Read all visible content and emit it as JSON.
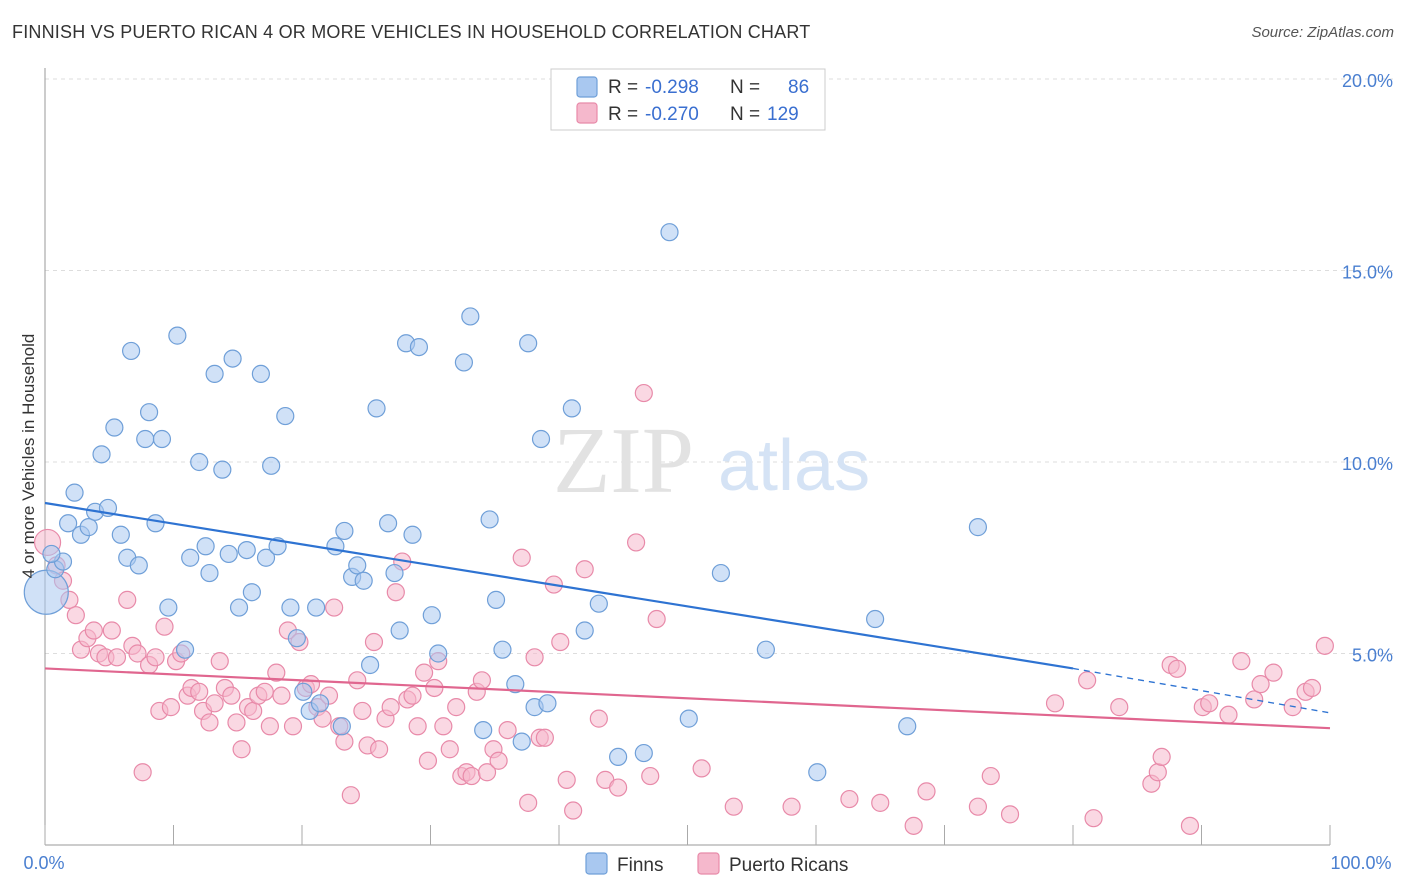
{
  "title": "FINNISH VS PUERTO RICAN 4 OR MORE VEHICLES IN HOUSEHOLD CORRELATION CHART",
  "source": "Source: ZipAtlas.com",
  "watermark": {
    "zip": "ZIP",
    "atlas": "atlas"
  },
  "colors": {
    "finns_fill": "#a9c8f0",
    "finns_stroke": "#6f9fd8",
    "finns_line": "#2e73d2",
    "pr_fill": "#f5b8cc",
    "pr_stroke": "#e88aa9",
    "pr_line": "#e0668f",
    "grid": "#dddddd",
    "tick_text": "#4a7fd0"
  },
  "legend": {
    "rows": [
      {
        "r_label": "R =",
        "r_value": "-0.298",
        "n_label": "N =",
        "n_value": "86"
      },
      {
        "r_label": "R =",
        "r_value": "-0.270",
        "n_label": "N =",
        "n_value": "129"
      }
    ]
  },
  "bottom_legend": [
    "Finns",
    "Puerto Ricans"
  ],
  "chart_data": {
    "type": "scatter",
    "title": "FINNISH VS PUERTO RICAN 4 OR MORE VEHICLES IN HOUSEHOLD CORRELATION CHART",
    "xlabel": "",
    "ylabel": "4 or more Vehicles in Household",
    "xlim": [
      0,
      100
    ],
    "ylim": [
      0,
      20
    ],
    "x_tick_labels": [
      "0.0%",
      "100.0%"
    ],
    "y_tick_labels": [
      "5.0%",
      "10.0%",
      "15.0%",
      "20.0%"
    ],
    "y_ticks": [
      5,
      10,
      15,
      20
    ],
    "grid": true,
    "legend_placement": "top-center",
    "series": [
      {
        "name": "Finns",
        "r": -0.298,
        "n": 86,
        "trend": {
          "x0": 0,
          "y0": 8.93,
          "x1": 80,
          "y1": 4.61,
          "dashed_to_x": 100,
          "dashed_to_y": 3.45
        },
        "points": [
          [
            0.1,
            6.6
          ],
          [
            0.8,
            7.2
          ],
          [
            1.4,
            7.4
          ],
          [
            1.8,
            8.4
          ],
          [
            2.3,
            9.2
          ],
          [
            2.8,
            8.1
          ],
          [
            3.4,
            8.3
          ],
          [
            3.9,
            8.7
          ],
          [
            4.4,
            10.2
          ],
          [
            4.9,
            8.8
          ],
          [
            5.4,
            10.9
          ],
          [
            5.9,
            8.1
          ],
          [
            6.4,
            7.5
          ],
          [
            6.7,
            12.9
          ],
          [
            7.3,
            7.3
          ],
          [
            7.8,
            10.6
          ],
          [
            8.1,
            11.3
          ],
          [
            8.6,
            8.4
          ],
          [
            9.1,
            10.6
          ],
          [
            9.6,
            6.2
          ],
          [
            10.3,
            13.3
          ],
          [
            10.9,
            5.1
          ],
          [
            11.3,
            7.5
          ],
          [
            12.0,
            10.0
          ],
          [
            12.5,
            7.8
          ],
          [
            12.8,
            7.1
          ],
          [
            13.2,
            12.3
          ],
          [
            13.8,
            9.8
          ],
          [
            14.3,
            7.6
          ],
          [
            14.6,
            12.7
          ],
          [
            15.1,
            6.2
          ],
          [
            15.7,
            7.7
          ],
          [
            16.1,
            6.6
          ],
          [
            16.8,
            12.3
          ],
          [
            17.2,
            7.5
          ],
          [
            17.6,
            9.9
          ],
          [
            18.1,
            7.8
          ],
          [
            18.7,
            11.2
          ],
          [
            19.1,
            6.2
          ],
          [
            19.6,
            5.4
          ],
          [
            20.1,
            4.0
          ],
          [
            20.6,
            3.5
          ],
          [
            21.1,
            6.2
          ],
          [
            21.4,
            3.7
          ],
          [
            22.6,
            7.8
          ],
          [
            23.1,
            3.1
          ],
          [
            23.3,
            8.2
          ],
          [
            23.9,
            7.0
          ],
          [
            24.3,
            7.3
          ],
          [
            24.8,
            6.9
          ],
          [
            25.3,
            4.7
          ],
          [
            25.8,
            11.4
          ],
          [
            26.7,
            8.4
          ],
          [
            27.2,
            7.1
          ],
          [
            27.6,
            5.6
          ],
          [
            28.1,
            13.1
          ],
          [
            28.6,
            8.1
          ],
          [
            29.1,
            13.0
          ],
          [
            30.1,
            6.0
          ],
          [
            30.6,
            5.0
          ],
          [
            32.6,
            12.6
          ],
          [
            33.1,
            13.8
          ],
          [
            34.1,
            3.0
          ],
          [
            34.6,
            8.5
          ],
          [
            35.1,
            6.4
          ],
          [
            35.6,
            5.1
          ],
          [
            36.6,
            4.2
          ],
          [
            37.1,
            2.7
          ],
          [
            37.6,
            13.1
          ],
          [
            38.1,
            3.6
          ],
          [
            38.6,
            10.6
          ],
          [
            39.1,
            3.7
          ],
          [
            41.0,
            11.4
          ],
          [
            42.0,
            5.6
          ],
          [
            43.1,
            6.3
          ],
          [
            44.6,
            2.3
          ],
          [
            46.6,
            2.4
          ],
          [
            48.6,
            16.0
          ],
          [
            50.1,
            3.3
          ],
          [
            52.6,
            7.1
          ],
          [
            56.1,
            5.1
          ],
          [
            60.1,
            1.9
          ],
          [
            64.6,
            5.9
          ],
          [
            67.1,
            3.1
          ],
          [
            72.6,
            8.3
          ],
          [
            0.5,
            7.6
          ]
        ]
      },
      {
        "name": "Puerto Ricans",
        "r": -0.27,
        "n": 129,
        "trend": {
          "x0": 0,
          "y0": 4.61,
          "x1": 100,
          "y1": 3.05
        },
        "points": [
          [
            0.2,
            7.9
          ],
          [
            0.9,
            7.3
          ],
          [
            1.4,
            6.9
          ],
          [
            1.9,
            6.4
          ],
          [
            2.4,
            6.0
          ],
          [
            2.8,
            5.1
          ],
          [
            3.3,
            5.4
          ],
          [
            3.8,
            5.6
          ],
          [
            4.2,
            5.0
          ],
          [
            4.7,
            4.9
          ],
          [
            5.2,
            5.6
          ],
          [
            5.6,
            4.9
          ],
          [
            6.4,
            6.4
          ],
          [
            6.8,
            5.2
          ],
          [
            7.2,
            5.0
          ],
          [
            7.6,
            1.9
          ],
          [
            8.1,
            4.7
          ],
          [
            8.6,
            4.9
          ],
          [
            8.9,
            3.5
          ],
          [
            9.3,
            5.7
          ],
          [
            9.8,
            3.6
          ],
          [
            10.2,
            4.8
          ],
          [
            10.6,
            5.0
          ],
          [
            11.1,
            3.9
          ],
          [
            11.4,
            4.1
          ],
          [
            12.0,
            4.0
          ],
          [
            12.3,
            3.5
          ],
          [
            12.8,
            3.2
          ],
          [
            13.2,
            3.7
          ],
          [
            13.6,
            4.8
          ],
          [
            14.0,
            4.1
          ],
          [
            14.5,
            3.9
          ],
          [
            14.9,
            3.2
          ],
          [
            15.3,
            2.5
          ],
          [
            15.8,
            3.6
          ],
          [
            16.2,
            3.5
          ],
          [
            16.6,
            3.9
          ],
          [
            17.1,
            4.0
          ],
          [
            17.5,
            3.1
          ],
          [
            18.0,
            4.5
          ],
          [
            18.4,
            3.9
          ],
          [
            18.9,
            5.6
          ],
          [
            19.3,
            3.1
          ],
          [
            19.8,
            5.3
          ],
          [
            20.3,
            4.1
          ],
          [
            20.7,
            4.2
          ],
          [
            21.2,
            3.6
          ],
          [
            21.6,
            3.3
          ],
          [
            22.1,
            3.9
          ],
          [
            22.5,
            6.2
          ],
          [
            22.9,
            3.1
          ],
          [
            23.3,
            2.7
          ],
          [
            23.8,
            1.3
          ],
          [
            24.3,
            4.3
          ],
          [
            24.7,
            3.5
          ],
          [
            25.1,
            2.6
          ],
          [
            25.6,
            5.3
          ],
          [
            26.0,
            2.5
          ],
          [
            26.5,
            3.3
          ],
          [
            26.9,
            3.6
          ],
          [
            27.3,
            6.6
          ],
          [
            27.8,
            7.4
          ],
          [
            28.2,
            3.8
          ],
          [
            28.6,
            3.9
          ],
          [
            29.0,
            3.1
          ],
          [
            29.5,
            4.5
          ],
          [
            29.8,
            2.2
          ],
          [
            30.3,
            4.1
          ],
          [
            30.6,
            4.8
          ],
          [
            31.0,
            3.1
          ],
          [
            31.5,
            2.5
          ],
          [
            32.0,
            3.6
          ],
          [
            32.4,
            1.8
          ],
          [
            32.8,
            1.9
          ],
          [
            33.2,
            1.8
          ],
          [
            33.6,
            4.0
          ],
          [
            34.0,
            4.3
          ],
          [
            34.4,
            1.9
          ],
          [
            34.9,
            2.5
          ],
          [
            35.3,
            2.2
          ],
          [
            36.0,
            3.0
          ],
          [
            37.1,
            7.5
          ],
          [
            37.6,
            1.1
          ],
          [
            38.1,
            4.9
          ],
          [
            38.5,
            2.8
          ],
          [
            38.9,
            2.8
          ],
          [
            39.6,
            6.8
          ],
          [
            40.1,
            5.3
          ],
          [
            40.6,
            1.7
          ],
          [
            41.1,
            0.9
          ],
          [
            42.0,
            7.2
          ],
          [
            43.1,
            3.3
          ],
          [
            43.6,
            1.7
          ],
          [
            44.6,
            1.5
          ],
          [
            46.0,
            7.9
          ],
          [
            46.6,
            11.8
          ],
          [
            47.1,
            1.8
          ],
          [
            47.6,
            5.9
          ],
          [
            51.1,
            2.0
          ],
          [
            53.6,
            1.0
          ],
          [
            58.1,
            1.0
          ],
          [
            62.6,
            1.2
          ],
          [
            65.0,
            1.1
          ],
          [
            67.6,
            0.5
          ],
          [
            68.6,
            1.4
          ],
          [
            72.6,
            1.0
          ],
          [
            73.6,
            1.8
          ],
          [
            75.1,
            0.8
          ],
          [
            78.6,
            3.7
          ],
          [
            81.1,
            4.3
          ],
          [
            81.6,
            0.7
          ],
          [
            83.6,
            3.6
          ],
          [
            86.1,
            1.6
          ],
          [
            86.6,
            1.9
          ],
          [
            86.9,
            2.3
          ],
          [
            87.6,
            4.7
          ],
          [
            88.1,
            4.6
          ],
          [
            89.1,
            0.5
          ],
          [
            90.1,
            3.6
          ],
          [
            90.6,
            3.7
          ],
          [
            92.1,
            3.4
          ],
          [
            93.1,
            4.8
          ],
          [
            94.1,
            3.8
          ],
          [
            94.6,
            4.2
          ],
          [
            95.6,
            4.5
          ],
          [
            97.1,
            3.6
          ],
          [
            98.1,
            4.0
          ],
          [
            98.6,
            4.1
          ],
          [
            99.6,
            5.2
          ]
        ]
      }
    ]
  }
}
